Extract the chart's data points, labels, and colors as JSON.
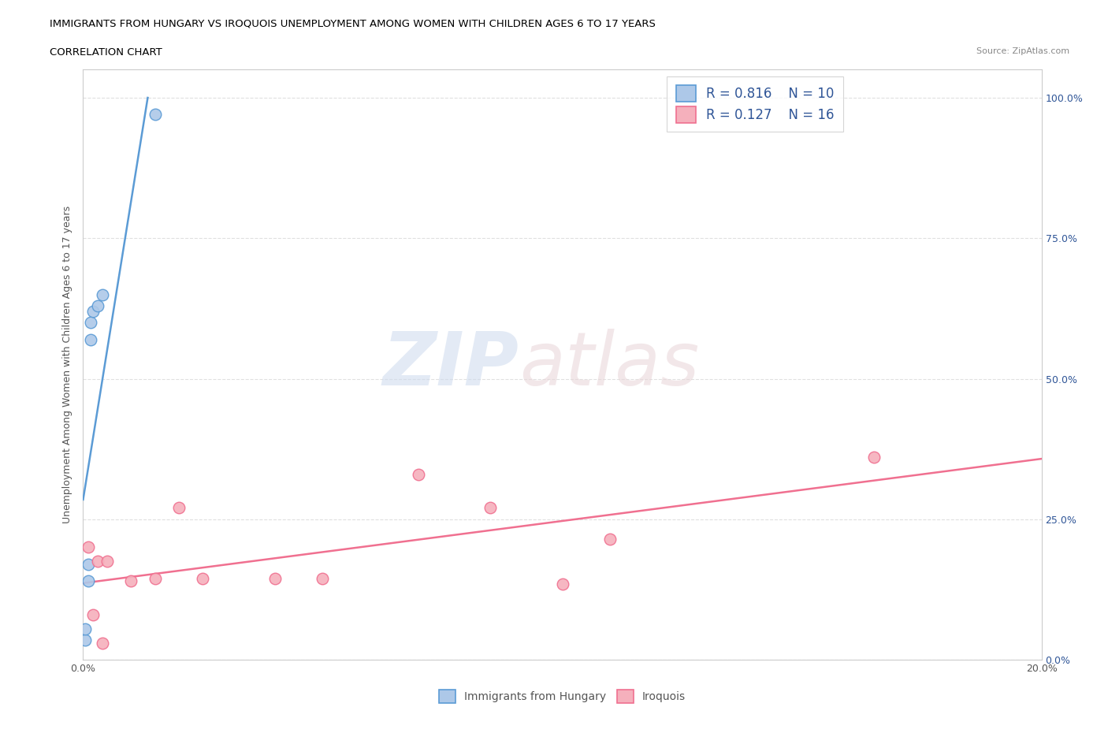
{
  "title_line1": "IMMIGRANTS FROM HUNGARY VS IROQUOIS UNEMPLOYMENT AMONG WOMEN WITH CHILDREN AGES 6 TO 17 YEARS",
  "title_line2": "CORRELATION CHART",
  "source": "Source: ZipAtlas.com",
  "ylabel": "Unemployment Among Women with Children Ages 6 to 17 years",
  "xlim": [
    0.0,
    0.2
  ],
  "ylim": [
    0.0,
    1.05
  ],
  "x_ticks": [
    0.0,
    0.04,
    0.08,
    0.12,
    0.16,
    0.2
  ],
  "x_tick_labels": [
    "0.0%",
    "",
    "",
    "",
    "",
    "20.0%"
  ],
  "y_ticks": [
    0.0,
    0.25,
    0.5,
    0.75,
    1.0
  ],
  "y_tick_labels": [
    "0.0%",
    "25.0%",
    "50.0%",
    "75.0%",
    "100.0%"
  ],
  "hungary_color": "#adc8e8",
  "iroquois_color": "#f5b0bc",
  "hungary_line_color": "#5b9bd5",
  "iroquois_line_color": "#f07090",
  "legend_text_color": "#2f5597",
  "background_color": "#ffffff",
  "hungary_R": 0.816,
  "hungary_N": 10,
  "iroquois_R": 0.127,
  "iroquois_N": 16,
  "hungary_x": [
    0.0005,
    0.0005,
    0.001,
    0.001,
    0.0015,
    0.0015,
    0.002,
    0.003,
    0.004,
    0.015
  ],
  "hungary_y": [
    0.035,
    0.055,
    0.14,
    0.17,
    0.57,
    0.6,
    0.62,
    0.63,
    0.65,
    0.97
  ],
  "iroquois_x": [
    0.001,
    0.002,
    0.003,
    0.004,
    0.005,
    0.01,
    0.015,
    0.02,
    0.025,
    0.04,
    0.05,
    0.07,
    0.085,
    0.1,
    0.11,
    0.165
  ],
  "iroquois_y": [
    0.2,
    0.08,
    0.175,
    0.03,
    0.175,
    0.14,
    0.145,
    0.27,
    0.145,
    0.145,
    0.145,
    0.33,
    0.27,
    0.135,
    0.215,
    0.36
  ],
  "grid_color": "#cccccc",
  "grid_linestyle": "--",
  "grid_alpha": 0.6,
  "marker_size": 110
}
